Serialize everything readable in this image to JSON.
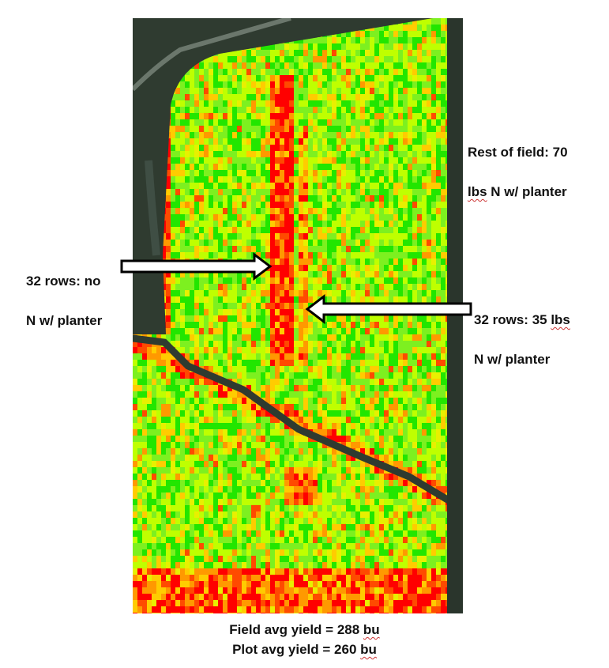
{
  "annotations": {
    "rest_of_field": {
      "line1": "Rest of field: 70",
      "line2_pre": "",
      "line2_flag": "lbs",
      "line2_post": " N w/ planter"
    },
    "no_n_rows": {
      "line1": "32 rows: no",
      "line2": "N w/ planter"
    },
    "n35_rows": {
      "line1_pre": "32 rows: 35 ",
      "line1_flag": "lbs",
      "line2": "N w/ planter"
    }
  },
  "footer": {
    "field_avg_pre": "Field avg yield = 288 ",
    "field_avg_unit": "bu",
    "plot_avg_pre": "Plot avg yield = 260 ",
    "plot_avg_unit": "bu"
  },
  "yield_palette": [
    "#ff0000",
    "#ff4a00",
    "#ff9900",
    "#ffcc00",
    "#e8f000",
    "#bfff00",
    "#7df020",
    "#22e600"
  ],
  "satellite_colors": {
    "field_bg": "#2f3b30",
    "ditch": "#35423a",
    "road": "#6b776c"
  }
}
